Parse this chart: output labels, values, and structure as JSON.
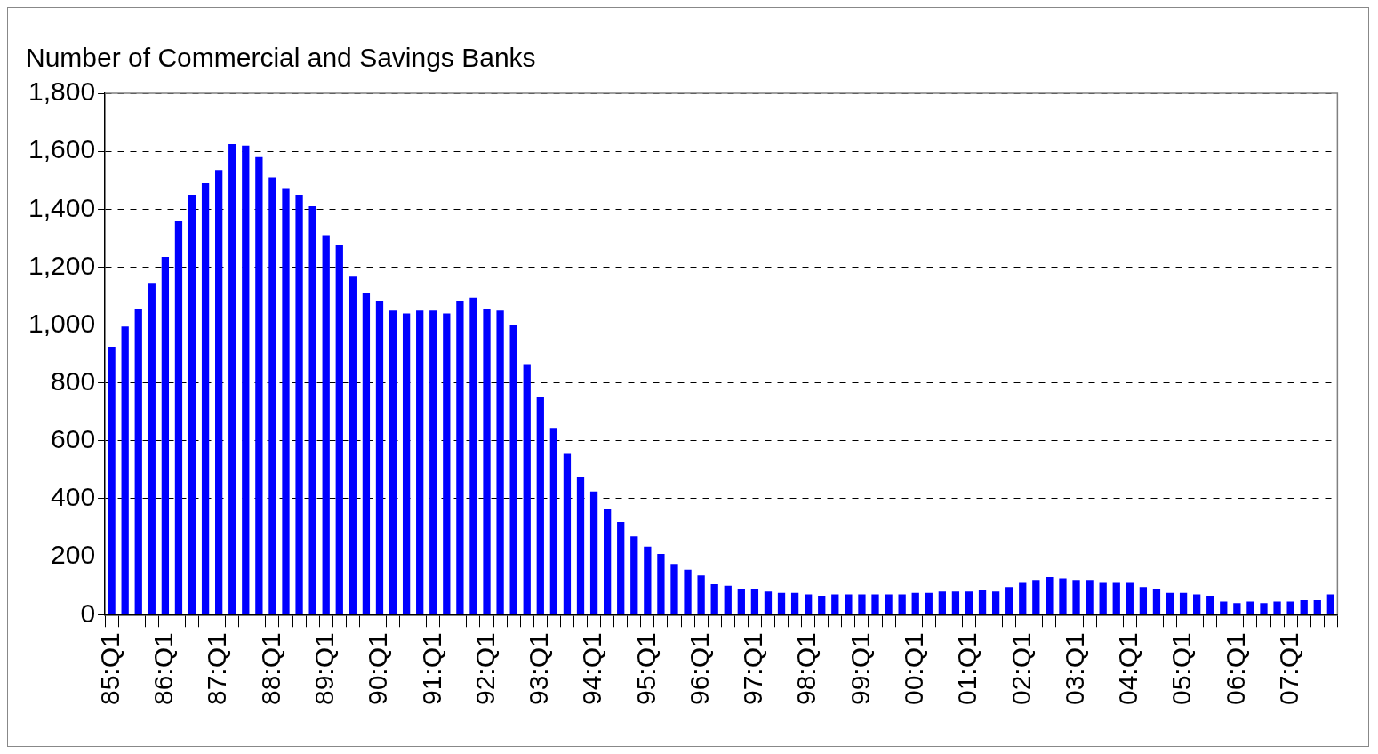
{
  "chart_data": {
    "type": "bar",
    "title": "Number of Commercial and Savings Banks",
    "categories": [
      "85:Q1",
      null,
      null,
      null,
      "86:Q1",
      null,
      null,
      null,
      "87:Q1",
      null,
      null,
      null,
      "88:Q1",
      null,
      null,
      null,
      "89:Q1",
      null,
      null,
      null,
      "90:Q1",
      null,
      null,
      null,
      "91:Q1",
      null,
      null,
      null,
      "92:Q1",
      null,
      null,
      null,
      "93:Q1",
      null,
      null,
      null,
      "94:Q1",
      null,
      null,
      null,
      "95:Q1",
      null,
      null,
      null,
      "96:Q1",
      null,
      null,
      null,
      "97:Q1",
      null,
      null,
      null,
      "98:Q1",
      null,
      null,
      null,
      "99:Q1",
      null,
      null,
      null,
      "00:Q1",
      null,
      null,
      null,
      "01:Q1",
      null,
      null,
      null,
      "02:Q1",
      null,
      null,
      null,
      "03:Q1",
      null,
      null,
      null,
      "04:Q1",
      null,
      null,
      null,
      "05:Q1",
      null,
      null,
      null,
      "06:Q1",
      null,
      null,
      null,
      "07:Q1",
      null,
      null,
      null
    ],
    "values": [
      925,
      995,
      1055,
      1145,
      1235,
      1360,
      1450,
      1490,
      1535,
      1625,
      1620,
      1580,
      1510,
      1470,
      1450,
      1410,
      1310,
      1275,
      1170,
      1110,
      1085,
      1050,
      1040,
      1050,
      1050,
      1040,
      1085,
      1095,
      1055,
      1050,
      1000,
      865,
      750,
      645,
      555,
      475,
      425,
      365,
      320,
      270,
      235,
      210,
      175,
      155,
      135,
      105,
      100,
      90,
      90,
      80,
      75,
      75,
      70,
      65,
      70,
      70,
      70,
      70,
      70,
      70,
      75,
      75,
      80,
      80,
      80,
      85,
      80,
      95,
      110,
      120,
      130,
      125,
      120,
      120,
      110,
      110,
      110,
      95,
      90,
      75,
      75,
      70,
      65,
      45,
      40,
      45,
      40,
      45,
      45,
      50,
      50,
      70
    ],
    "color": "#0000ff",
    "ylim": [
      0,
      1800
    ],
    "yticks": [
      {
        "value": 0,
        "label": "0"
      },
      {
        "value": 200,
        "label": "200"
      },
      {
        "value": 400,
        "label": "400"
      },
      {
        "value": 600,
        "label": "600"
      },
      {
        "value": 800,
        "label": "800"
      },
      {
        "value": 1000,
        "label": "1,000"
      },
      {
        "value": 1200,
        "label": "1,200"
      },
      {
        "value": 1400,
        "label": "1,400"
      },
      {
        "value": 1600,
        "label": "1,600"
      },
      {
        "value": 1800,
        "label": "1,800"
      }
    ],
    "grid": "y"
  }
}
